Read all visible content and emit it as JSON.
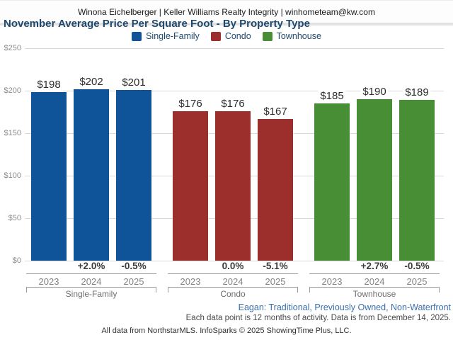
{
  "header": {
    "contact_line": "Winona Eichelberger | Keller Williams Realty Integrity | winhometeam@kw.com"
  },
  "chart_data": {
    "type": "bar",
    "title": "November Average Price Per Square Foot - By Property Type",
    "xlabel": "",
    "ylabel": "",
    "ylim": [
      0,
      250
    ],
    "grid": true,
    "legend_position": "top",
    "y_ticks": [
      {
        "value": 250,
        "label": "$250"
      },
      {
        "value": 200,
        "label": "$200"
      },
      {
        "value": 150,
        "label": "$150"
      },
      {
        "value": 100,
        "label": "$100"
      },
      {
        "value": 50,
        "label": "$50"
      },
      {
        "value": 0,
        "label": "$0"
      }
    ],
    "categories": [
      "2023",
      "2024",
      "2025"
    ],
    "series": [
      {
        "name": "Single-Family",
        "color": "#0F5499",
        "values": [
          198,
          202,
          201
        ],
        "value_labels": [
          "$198",
          "$202",
          "$201"
        ],
        "pct_change": [
          "",
          "+2.0%",
          "-0.5%"
        ]
      },
      {
        "name": "Condo",
        "color": "#9C2E2C",
        "values": [
          176,
          176,
          167
        ],
        "value_labels": [
          "$176",
          "$176",
          "$167"
        ],
        "pct_change": [
          "",
          "0.0%",
          "-5.1%"
        ]
      },
      {
        "name": "Townhouse",
        "color": "#478E35",
        "values": [
          185,
          190,
          189
        ],
        "value_labels": [
          "$185",
          "$190",
          "$189"
        ],
        "pct_change": [
          "",
          "+2.7%",
          "-0.5%"
        ]
      }
    ]
  },
  "footnotes": {
    "filter_line": "Eagan: Traditional, Previously Owned, Non-Waterfront",
    "data_note": "Each data point is 12 months of activity. Data is from December 14, 2025.",
    "attribution": "All data from NorthstarMLS. InfoSparks © 2025 ShowingTime Plus, LLC."
  }
}
